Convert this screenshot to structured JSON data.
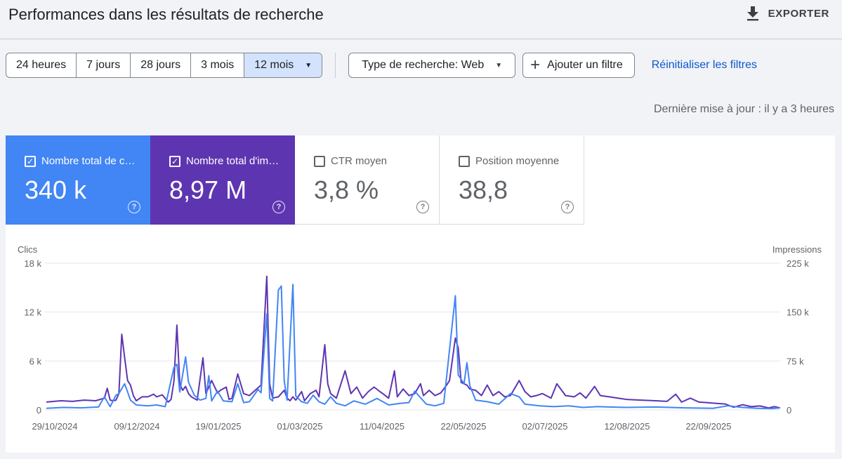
{
  "header": {
    "title": "Performances dans les résultats de recherche",
    "export_label": "EXPORTER"
  },
  "filters": {
    "ranges": [
      "24 heures",
      "7 jours",
      "28 jours",
      "3 mois",
      "12 mois"
    ],
    "active_range": "12 mois",
    "search_type": "Type de recherche: Web",
    "add_filter": "Ajouter un filtre",
    "reset": "Réinitialiser les filtres"
  },
  "last_update": "Dernière mise à jour : il y a 3 heures",
  "metrics": [
    {
      "label": "Nombre total de c…",
      "value": "340 k",
      "checked": true,
      "color": "#4285f4"
    },
    {
      "label": "Nombre total d'im…",
      "value": "8,97 M",
      "checked": true,
      "color": "#5e35b1"
    },
    {
      "label": "CTR moyen",
      "value": "3,8 %",
      "checked": false
    },
    {
      "label": "Position moyenne",
      "value": "38,8",
      "checked": false
    }
  ],
  "icons": [
    "download-icon",
    "caret-down-icon",
    "plus-icon",
    "checkbox-icon",
    "help-icon"
  ],
  "chart_data": {
    "type": "line",
    "left_axis": {
      "label": "Clics",
      "ticks": [
        "0",
        "6 k",
        "12 k",
        "18 k"
      ],
      "range": [
        0,
        18000
      ]
    },
    "right_axis": {
      "label": "Impressions",
      "ticks": [
        "0",
        "75 k",
        "150 k",
        "225 k"
      ],
      "range": [
        0,
        225000
      ]
    },
    "x_ticks": [
      "29/10/2024",
      "09/12/2024",
      "19/01/2025",
      "01/03/2025",
      "11/04/2025",
      "22/05/2025",
      "02/07/2025",
      "12/08/2025",
      "22/09/2025"
    ],
    "series": [
      {
        "color": "#4285f4",
        "axis": "left",
        "points": [
          [
            0,
            200
          ],
          [
            12,
            300
          ],
          [
            24,
            250
          ],
          [
            36,
            350
          ],
          [
            40,
            1600
          ],
          [
            44,
            400
          ],
          [
            48,
            1800
          ],
          [
            50,
            2000
          ],
          [
            54,
            3200
          ],
          [
            58,
            1200
          ],
          [
            62,
            600
          ],
          [
            70,
            500
          ],
          [
            76,
            600
          ],
          [
            82,
            400
          ],
          [
            88,
            5200
          ],
          [
            90,
            5600
          ],
          [
            92,
            2200
          ],
          [
            96,
            6500
          ],
          [
            98,
            3400
          ],
          [
            102,
            1800
          ],
          [
            106,
            1200
          ],
          [
            110,
            1400
          ],
          [
            112,
            4200
          ],
          [
            114,
            1100
          ],
          [
            118,
            2300
          ],
          [
            122,
            1100
          ],
          [
            128,
            1000
          ],
          [
            132,
            3200
          ],
          [
            136,
            900
          ],
          [
            140,
            1000
          ],
          [
            146,
            2500
          ],
          [
            148,
            2100
          ],
          [
            152,
            11800
          ],
          [
            154,
            1400
          ],
          [
            156,
            1100
          ],
          [
            160,
            14700
          ],
          [
            162,
            15200
          ],
          [
            164,
            3600
          ],
          [
            166,
            1200
          ],
          [
            170,
            15400
          ],
          [
            172,
            1700
          ],
          [
            176,
            1000
          ],
          [
            180,
            800
          ],
          [
            184,
            1800
          ],
          [
            188,
            1000
          ],
          [
            192,
            700
          ],
          [
            196,
            1600
          ],
          [
            200,
            800
          ],
          [
            206,
            500
          ],
          [
            212,
            1100
          ],
          [
            220,
            700
          ],
          [
            228,
            1400
          ],
          [
            236,
            600
          ],
          [
            244,
            800
          ],
          [
            250,
            900
          ],
          [
            254,
            2300
          ],
          [
            258,
            1500
          ],
          [
            262,
            700
          ],
          [
            268,
            500
          ],
          [
            274,
            800
          ],
          [
            282,
            14000
          ],
          [
            284,
            4300
          ],
          [
            288,
            3200
          ],
          [
            290,
            5800
          ],
          [
            292,
            3000
          ],
          [
            296,
            1200
          ],
          [
            304,
            1000
          ],
          [
            312,
            700
          ],
          [
            320,
            2000
          ],
          [
            326,
            1600
          ],
          [
            330,
            700
          ],
          [
            340,
            500
          ],
          [
            350,
            400
          ],
          [
            360,
            500
          ],
          [
            370,
            300
          ],
          [
            380,
            400
          ],
          [
            400,
            300
          ],
          [
            420,
            350
          ],
          [
            440,
            250
          ],
          [
            460,
            200
          ],
          [
            470,
            500
          ],
          [
            480,
            300
          ],
          [
            490,
            200
          ],
          [
            500,
            150
          ],
          [
            506,
            250
          ]
        ]
      },
      {
        "color": "#5e35b1",
        "axis": "right",
        "points": [
          [
            0,
            12000
          ],
          [
            10,
            14000
          ],
          [
            18,
            13000
          ],
          [
            26,
            15000
          ],
          [
            34,
            14000
          ],
          [
            40,
            18000
          ],
          [
            42,
            33000
          ],
          [
            44,
            15000
          ],
          [
            46,
            14000
          ],
          [
            48,
            15000
          ],
          [
            50,
            25000
          ],
          [
            52,
            116000
          ],
          [
            54,
            80000
          ],
          [
            56,
            45000
          ],
          [
            58,
            38000
          ],
          [
            60,
            22000
          ],
          [
            62,
            14000
          ],
          [
            66,
            20000
          ],
          [
            70,
            20000
          ],
          [
            74,
            24000
          ],
          [
            76,
            20000
          ],
          [
            80,
            23000
          ],
          [
            84,
            12000
          ],
          [
            86,
            16000
          ],
          [
            88,
            44000
          ],
          [
            90,
            130000
          ],
          [
            92,
            40000
          ],
          [
            94,
            30000
          ],
          [
            96,
            36000
          ],
          [
            98,
            25000
          ],
          [
            100,
            20000
          ],
          [
            104,
            15000
          ],
          [
            108,
            80000
          ],
          [
            110,
            25000
          ],
          [
            114,
            45000
          ],
          [
            118,
            26000
          ],
          [
            120,
            30000
          ],
          [
            124,
            35000
          ],
          [
            126,
            16000
          ],
          [
            128,
            18000
          ],
          [
            132,
            55000
          ],
          [
            136,
            25000
          ],
          [
            140,
            22000
          ],
          [
            144,
            30000
          ],
          [
            148,
            38000
          ],
          [
            152,
            205000
          ],
          [
            154,
            40000
          ],
          [
            156,
            18000
          ],
          [
            160,
            20000
          ],
          [
            164,
            30000
          ],
          [
            166,
            18000
          ],
          [
            168,
            14000
          ],
          [
            170,
            20000
          ],
          [
            172,
            15000
          ],
          [
            176,
            28000
          ],
          [
            178,
            14000
          ],
          [
            182,
            25000
          ],
          [
            186,
            30000
          ],
          [
            188,
            20000
          ],
          [
            192,
            100000
          ],
          [
            194,
            40000
          ],
          [
            196,
            25000
          ],
          [
            200,
            18000
          ],
          [
            206,
            60000
          ],
          [
            210,
            25000
          ],
          [
            214,
            35000
          ],
          [
            218,
            18000
          ],
          [
            222,
            28000
          ],
          [
            226,
            35000
          ],
          [
            230,
            28000
          ],
          [
            232,
            25000
          ],
          [
            236,
            18000
          ],
          [
            240,
            60000
          ],
          [
            242,
            20000
          ],
          [
            246,
            32000
          ],
          [
            250,
            22000
          ],
          [
            254,
            25000
          ],
          [
            258,
            40000
          ],
          [
            260,
            22000
          ],
          [
            264,
            30000
          ],
          [
            268,
            22000
          ],
          [
            272,
            26000
          ],
          [
            276,
            38000
          ],
          [
            278,
            45000
          ],
          [
            282,
            110000
          ],
          [
            284,
            95000
          ],
          [
            286,
            42000
          ],
          [
            290,
            38000
          ],
          [
            292,
            32000
          ],
          [
            296,
            30000
          ],
          [
            300,
            22000
          ],
          [
            304,
            38000
          ],
          [
            308,
            22000
          ],
          [
            312,
            28000
          ],
          [
            316,
            20000
          ],
          [
            320,
            22000
          ],
          [
            326,
            45000
          ],
          [
            330,
            28000
          ],
          [
            334,
            20000
          ],
          [
            338,
            22000
          ],
          [
            342,
            25000
          ],
          [
            348,
            18000
          ],
          [
            352,
            40000
          ],
          [
            356,
            28000
          ],
          [
            358,
            22000
          ],
          [
            364,
            20000
          ],
          [
            368,
            26000
          ],
          [
            372,
            18000
          ],
          [
            378,
            36000
          ],
          [
            382,
            22000
          ],
          [
            388,
            20000
          ],
          [
            394,
            18000
          ],
          [
            400,
            16000
          ],
          [
            410,
            15000
          ],
          [
            420,
            14000
          ],
          [
            428,
            13000
          ],
          [
            434,
            24000
          ],
          [
            438,
            12000
          ],
          [
            444,
            18000
          ],
          [
            450,
            12000
          ],
          [
            456,
            11000
          ],
          [
            462,
            10000
          ],
          [
            468,
            9000
          ],
          [
            474,
            4000
          ],
          [
            480,
            8000
          ],
          [
            486,
            5000
          ],
          [
            492,
            6000
          ],
          [
            498,
            3000
          ],
          [
            502,
            5000
          ],
          [
            506,
            3000
          ]
        ]
      }
    ]
  }
}
